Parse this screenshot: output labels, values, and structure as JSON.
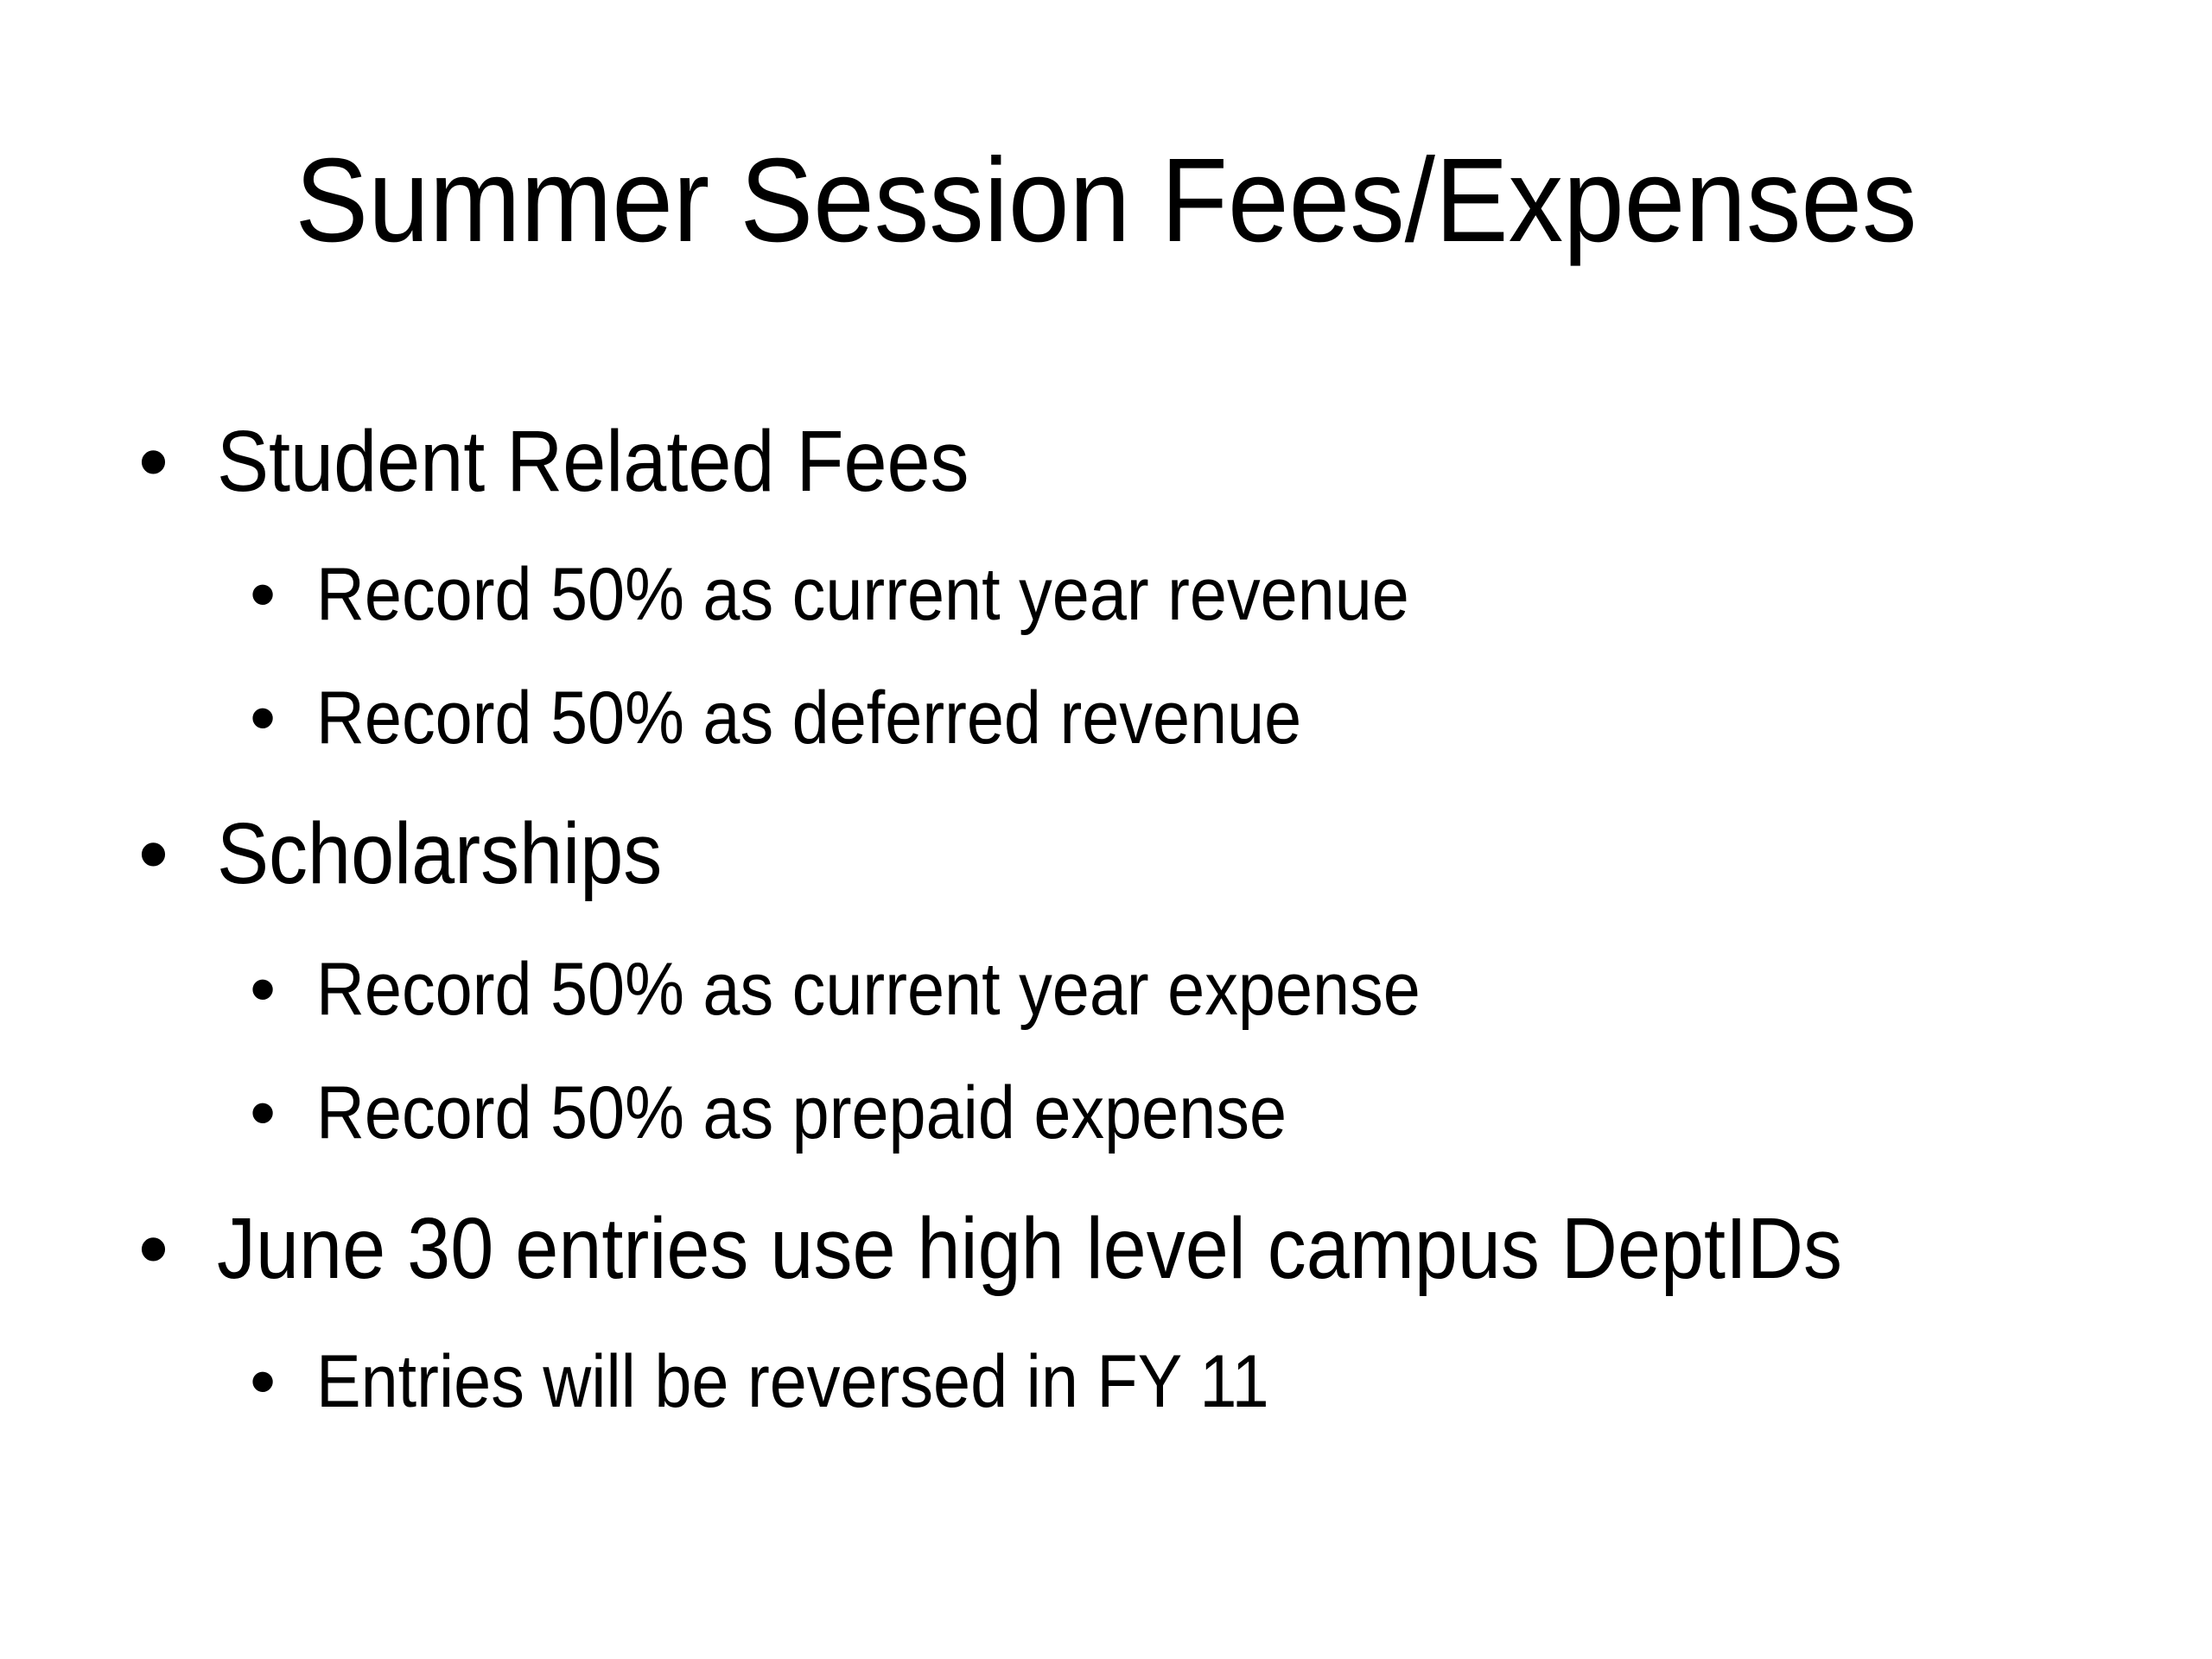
{
  "slide": {
    "title": "Summer Session Fees/Expenses",
    "bullets": [
      {
        "level": 1,
        "text": "Student Related Fees"
      },
      {
        "level": 2,
        "text": "Record 50% as current year revenue"
      },
      {
        "level": 2,
        "text": "Record 50% as deferred revenue"
      },
      {
        "level": 1,
        "text": "Scholarships"
      },
      {
        "level": 2,
        "text": "Record 50% as current year expense"
      },
      {
        "level": 2,
        "text": "Record 50% as prepaid expense"
      },
      {
        "level": 1,
        "text": "June 30 entries use high level campus DeptIDs"
      },
      {
        "level": 2,
        "text": "Entries will be reversed in FY 11"
      }
    ],
    "bullet_glyph": "•"
  }
}
